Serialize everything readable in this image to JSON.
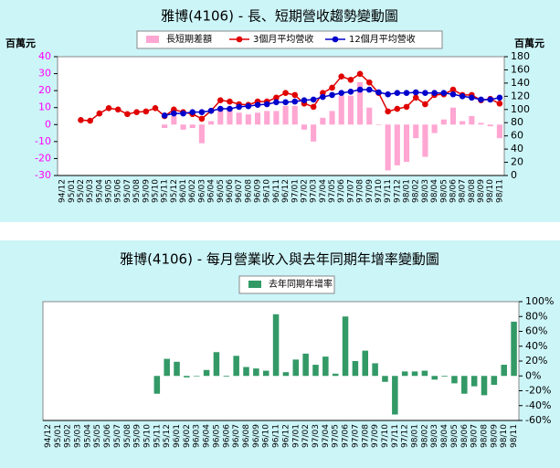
{
  "chart_data": [
    {
      "type": "combo",
      "title": "雅博(4106) -  長、短期營收趨勢變動圖",
      "ylabel": "百萬元",
      "y2label": "百萬元",
      "categories": [
        "94/12",
        "95/01",
        "95/02",
        "95/03",
        "95/04",
        "95/05",
        "95/06",
        "95/07",
        "95/08",
        "95/09",
        "95/10",
        "95/11",
        "95/12",
        "96/01",
        "96/02",
        "96/03",
        "96/04",
        "96/05",
        "96/06",
        "96/07",
        "96/08",
        "96/09",
        "96/10",
        "96/11",
        "96/12",
        "97/01",
        "97/02",
        "97/03",
        "97/04",
        "97/05",
        "97/06",
        "97/07",
        "97/08",
        "97/09",
        "97/10",
        "97/11",
        "97/12",
        "98/01",
        "98/02",
        "98/03",
        "98/04",
        "98/05",
        "98/06",
        "98/07",
        "98/08",
        "98/09",
        "98/10",
        "98/11"
      ],
      "ylim": [
        -30,
        40
      ],
      "yticks": [
        -30,
        -20,
        -10,
        0,
        10,
        20,
        30,
        40
      ],
      "y2lim": [
        0,
        180
      ],
      "y2ticks": [
        0,
        20,
        40,
        60,
        80,
        100,
        120,
        140,
        160,
        180
      ],
      "series": [
        {
          "name": "長短期差額",
          "type": "bar",
          "color": "#ffa6d2",
          "values": [
            null,
            null,
            null,
            null,
            null,
            null,
            null,
            null,
            null,
            null,
            null,
            -2,
            5,
            -3,
            -2,
            -11,
            2,
            10,
            9,
            7,
            6,
            7,
            8,
            8,
            11,
            11,
            -3,
            -10,
            4,
            8,
            17,
            17,
            25,
            10,
            0,
            -27,
            -24,
            -22,
            -8,
            -19,
            -5,
            3,
            10,
            2,
            5,
            1,
            -1,
            -8
          ]
        },
        {
          "name": "3個月平均營收",
          "type": "line",
          "axis": "y2",
          "color": "#e00000",
          "values": [
            null,
            null,
            84,
            83,
            94,
            102,
            100,
            93,
            96,
            97,
            102,
            90,
            100,
            96,
            93,
            86,
            98,
            114,
            112,
            108,
            107,
            112,
            112,
            118,
            125,
            122,
            109,
            104,
            125,
            133,
            150,
            145,
            154,
            141,
            125,
            97,
            101,
            104,
            118,
            108,
            122,
            123,
            130,
            122,
            122,
            114,
            116,
            109
          ]
        },
        {
          "name": "12個月平均營收",
          "type": "line",
          "axis": "y2",
          "color": "#0000cc",
          "values": [
            null,
            null,
            null,
            null,
            null,
            null,
            null,
            null,
            null,
            null,
            null,
            91,
            94,
            94,
            96,
            96,
            98,
            101,
            101,
            104,
            105,
            107,
            108,
            111,
            111,
            112,
            114,
            115,
            119,
            122,
            125,
            127,
            130,
            130,
            126,
            123,
            125,
            125,
            126,
            125,
            125,
            125,
            123,
            120,
            118,
            115,
            115,
            118
          ]
        }
      ]
    },
    {
      "type": "bar",
      "title": "雅博(4106) -  每月營業收入與去年同期年增率變動圖",
      "categories": [
        "94/12",
        "95/01",
        "95/02",
        "95/03",
        "95/04",
        "95/05",
        "95/06",
        "95/07",
        "95/08",
        "95/09",
        "95/10",
        "95/11",
        "95/12",
        "96/01",
        "96/02",
        "96/03",
        "96/04",
        "96/05",
        "96/06",
        "96/07",
        "96/08",
        "96/09",
        "96/10",
        "96/11",
        "96/12",
        "97/01",
        "97/02",
        "97/03",
        "97/04",
        "97/05",
        "97/06",
        "97/07",
        "97/08",
        "97/09",
        "97/10",
        "97/11",
        "97/12",
        "98/01",
        "98/02",
        "98/03",
        "98/04",
        "98/05",
        "98/06",
        "98/07",
        "98/08",
        "98/09",
        "98/10",
        "98/11"
      ],
      "yaxis_side": "right",
      "ylim": [
        -60,
        100
      ],
      "yticks": [
        {
          "value": -60,
          "label": "-60%"
        },
        {
          "value": -40,
          "label": "-40%"
        },
        {
          "value": -20,
          "label": "-20%"
        },
        {
          "value": 0,
          "label": "0%"
        },
        {
          "value": 20,
          "label": "20%"
        },
        {
          "value": 40,
          "label": "40%"
        },
        {
          "value": 60,
          "label": "60%"
        },
        {
          "value": 80,
          "label": "80%"
        },
        {
          "value": 100,
          "label": "100%"
        }
      ],
      "series": [
        {
          "name": "去年同期年增率",
          "type": "bar",
          "color": "#339966",
          "values": [
            null,
            null,
            null,
            null,
            null,
            null,
            null,
            null,
            null,
            null,
            null,
            -24,
            23,
            19,
            -2,
            0,
            8,
            32,
            -1,
            27,
            12,
            10,
            7,
            83,
            5,
            22,
            30,
            15,
            26,
            3,
            80,
            20,
            34,
            17,
            -8,
            -52,
            6,
            6,
            7,
            -5,
            -1,
            -10,
            -24,
            -14,
            -26,
            -12,
            15,
            73
          ]
        }
      ]
    }
  ]
}
